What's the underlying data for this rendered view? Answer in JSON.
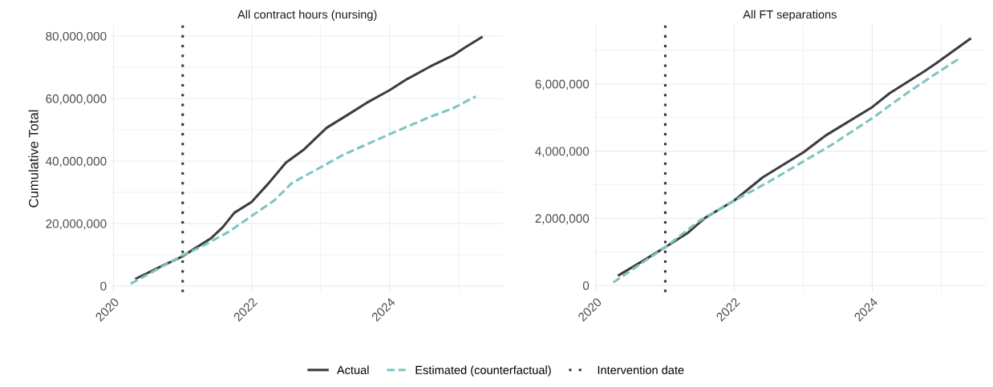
{
  "chart_data": [
    {
      "type": "line",
      "title": "All contract hours (nursing)",
      "ylabel": "Cumulative Total",
      "xlim": [
        "2019-12-20",
        "2025-08-25"
      ],
      "xticks": [
        {
          "value": "2020-01-01",
          "label": "2020"
        },
        {
          "value": "2022-01-01",
          "label": "2022"
        },
        {
          "value": "2024-01-01",
          "label": "2024"
        }
      ],
      "ylim": [
        -2000000,
        83500000
      ],
      "yticks": [
        {
          "value": 0,
          "label": "0"
        },
        {
          "value": 20000000,
          "label": "20,000,000"
        },
        {
          "value": 40000000,
          "label": "40,000,000"
        },
        {
          "value": 60000000,
          "label": "60,000,000"
        },
        {
          "value": 80000000,
          "label": "80,000,000"
        }
      ],
      "grid": true,
      "legend": "bottom",
      "series": [
        {
          "name": "Actual",
          "color": "#3d3d3d",
          "line_style": "solid",
          "x": [
            "2020-05",
            "2020-09",
            "2021-01",
            "2021-03",
            "2021-06",
            "2021-08",
            "2021-10",
            "2022-01",
            "2022-04",
            "2022-07",
            "2022-10",
            "2023-02",
            "2023-06",
            "2023-09",
            "2024-01",
            "2024-04",
            "2024-08",
            "2024-12",
            "2025-02",
            "2025-05"
          ],
          "values": [
            2400000,
            6000000,
            9500000,
            11800000,
            15300000,
            18800000,
            23400000,
            26900000,
            32900000,
            39500000,
            43500000,
            50600000,
            55100000,
            58600000,
            62700000,
            66200000,
            70200000,
            73800000,
            76300000,
            79600000
          ]
        },
        {
          "name": "Estimated (counterfactual)",
          "color": "#7cc5c3",
          "line_style": "dashed",
          "x": [
            "2020-04",
            "2020-07",
            "2021-01",
            "2021-04",
            "2021-09",
            "2022-01",
            "2022-05",
            "2022-08",
            "2023-01",
            "2023-05",
            "2024-01",
            "2024-08",
            "2024-12",
            "2025-04"
          ],
          "values": [
            700000,
            3700000,
            9800000,
            12300000,
            17300000,
            22400000,
            27400000,
            32900000,
            38000000,
            42000000,
            48600000,
            54100000,
            56900000,
            60700000
          ]
        }
      ],
      "ref_lines": [
        {
          "axis": "x",
          "value": "2021-01-01",
          "label": "Intervention date",
          "color": "#333333",
          "line_style": "dotted"
        }
      ]
    },
    {
      "type": "line",
      "title": "All FT separations",
      "xlim": [
        "2019-12-20",
        "2025-08-25"
      ],
      "xticks": [
        {
          "value": "2020-01-01",
          "label": "2020"
        },
        {
          "value": "2022-01-01",
          "label": "2022"
        },
        {
          "value": "2024-01-01",
          "label": "2024"
        }
      ],
      "ylim": [
        -200000,
        7750000
      ],
      "yticks": [
        {
          "value": 0,
          "label": "0"
        },
        {
          "value": 2000000,
          "label": "2,000,000"
        },
        {
          "value": 4000000,
          "label": "4,000,000"
        },
        {
          "value": 6000000,
          "label": "6,000,000"
        }
      ],
      "grid": true,
      "series": [
        {
          "color": "#3d3d3d",
          "line_style": "solid",
          "x": [
            "2020-05",
            "2020-09",
            "2021-01",
            "2021-05",
            "2021-08",
            "2022-01",
            "2022-06",
            "2023-01",
            "2023-05",
            "2024-01",
            "2024-04",
            "2024-10",
            "2024-12",
            "2025-06"
          ],
          "values": [
            310000,
            720000,
            1140000,
            1570000,
            2020000,
            2530000,
            3220000,
            3960000,
            4470000,
            5310000,
            5720000,
            6370000,
            6600000,
            7340000
          ]
        },
        {
          "color": "#7cc5c3",
          "line_style": "dashed",
          "x": [
            "2020-04",
            "2021-01",
            "2021-07",
            "2022-02",
            "2022-07",
            "2023-01",
            "2023-06",
            "2024-01",
            "2024-07",
            "2024-11",
            "2025-04"
          ],
          "values": [
            90000,
            1140000,
            1930000,
            2620000,
            3080000,
            3690000,
            4190000,
            4980000,
            5720000,
            6190000,
            6740000
          ]
        }
      ],
      "ref_lines": [
        {
          "axis": "x",
          "value": "2021-01-01",
          "color": "#333333",
          "line_style": "dotted"
        }
      ]
    }
  ]
}
